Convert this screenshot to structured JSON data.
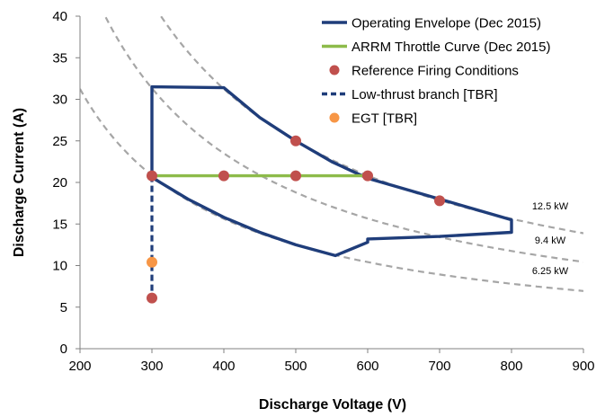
{
  "chart_data": {
    "type": "line",
    "title": "",
    "xlabel": "Discharge Voltage (V)",
    "ylabel": "Discharge Current (A)",
    "xlim": [
      200,
      900
    ],
    "ylim": [
      0,
      40
    ],
    "xticks": [
      200,
      300,
      400,
      500,
      600,
      700,
      800,
      900
    ],
    "yticks": [
      0,
      5,
      10,
      15,
      20,
      25,
      30,
      35,
      40
    ],
    "grid": false,
    "legend_position": "top-right",
    "series": [
      {
        "name": "Operating Envelope (Dec 2015)",
        "kind": "line",
        "color": "#1f3d7a",
        "style": "solid",
        "x": [
          300,
          300,
          400,
          450,
          500,
          550,
          600,
          700,
          800,
          800,
          700,
          600,
          600,
          555,
          500,
          450,
          400,
          350,
          300
        ],
        "y": [
          21,
          31.5,
          31.4,
          27.8,
          25,
          22.5,
          20.5,
          18,
          15.5,
          14,
          13.5,
          13.2,
          12.8,
          11.2,
          12.5,
          14,
          15.8,
          18,
          20.6
        ]
      },
      {
        "name": "ARRM Throttle Curve (Dec 2015)",
        "kind": "line",
        "color": "#8dbb4a",
        "style": "solid",
        "x": [
          300,
          600
        ],
        "y": [
          20.8,
          20.8
        ]
      },
      {
        "name": "Reference Firing Conditions",
        "kind": "scatter",
        "color": "#c0504d",
        "x": [
          300,
          300,
          400,
          500,
          500,
          600,
          700
        ],
        "y": [
          20.8,
          6.1,
          20.8,
          20.8,
          25,
          20.8,
          17.8
        ]
      },
      {
        "name": "Low-thrust branch [TBR]",
        "kind": "line",
        "color": "#1f3d7a",
        "style": "dashed",
        "x": [
          300,
          300
        ],
        "y": [
          20.8,
          6.1
        ]
      },
      {
        "name": "EGT [TBR]",
        "kind": "scatter",
        "color": "#f79646",
        "x": [
          300
        ],
        "y": [
          10.4
        ]
      }
    ],
    "power_curves": [
      {
        "label": "12.5 kW",
        "power_w": 12500,
        "color": "#a6a6a6"
      },
      {
        "label": "9.4 kW",
        "power_w": 9400,
        "color": "#a6a6a6"
      },
      {
        "label": "6.25 kW",
        "power_w": 6250,
        "color": "#a6a6a6"
      }
    ]
  }
}
